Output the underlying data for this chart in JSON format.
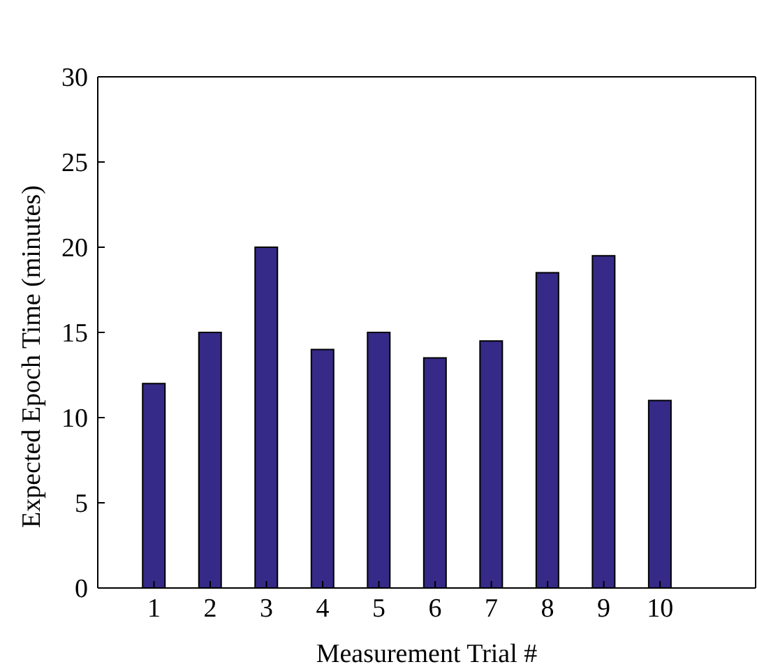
{
  "chart_data": {
    "type": "bar",
    "xlabel": "Measurement Trial #",
    "ylabel": "Expected Epoch Time (minutes)",
    "x": [
      1,
      2,
      3,
      4,
      5,
      6,
      7,
      8,
      9,
      10
    ],
    "values": [
      12,
      15,
      20,
      14,
      15,
      13.5,
      14.5,
      18.5,
      19.5,
      11
    ],
    "color": "#352a87",
    "xlim": [
      0,
      11.7
    ],
    "xticks": [
      1,
      2,
      3,
      4,
      5,
      6,
      7,
      8,
      9,
      10
    ],
    "ylim": [
      0,
      30
    ],
    "yticks": [
      0,
      5,
      10,
      15,
      20,
      25,
      30
    ],
    "grid": false
  }
}
